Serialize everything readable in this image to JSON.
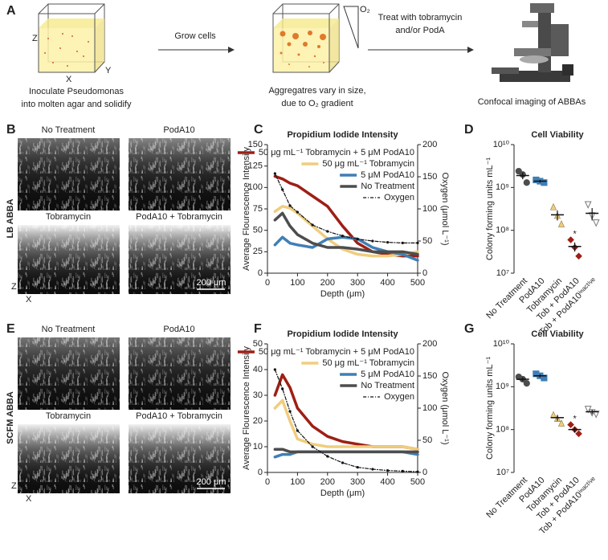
{
  "panel_labels": [
    "A",
    "B",
    "C",
    "D",
    "E",
    "F",
    "G"
  ],
  "schematic": {
    "axis_z": "Z",
    "axis_x": "X",
    "axis_y": "Y",
    "step1": [
      "Inoculate Pseudomonas",
      "into molten agar and solidify"
    ],
    "arrow1": "Grow cells",
    "oxygen": "O₂",
    "step2": [
      "Aggregatres vary in size,",
      "due to O₂ gradient"
    ],
    "arrow2": [
      "Treat with tobramycin",
      "and/or PodA"
    ],
    "step3": "Confocal imaging of ABBAs"
  },
  "micrographs": [
    {
      "medium": "LB ABBA",
      "tiles": [
        "No Treatment",
        "PodA10",
        "Tobramycin",
        "PodA10 + Tobramycin"
      ],
      "scale_bar": "200 μm",
      "axis_z": "Z",
      "axis_x": "X"
    },
    {
      "medium": "SCFM ABBA",
      "tiles": [
        "No Treatment",
        "PodA10",
        "Tobramycin",
        "PodA10 + Tobramycin"
      ],
      "scale_bar": "200 μm",
      "axis_z": "Z",
      "axis_x": "X"
    }
  ],
  "chart_data": [
    {
      "type": "line",
      "title": "Propidium Iodide Intensity",
      "xlabel": "Depth (μm)",
      "ylabel": "Average Flourescence Intensity",
      "y2label": "Oxygen (μmol L⁻¹)",
      "x": [
        25,
        50,
        75,
        100,
        150,
        200,
        250,
        300,
        350,
        400,
        450,
        500
      ],
      "xlim": [
        0,
        500
      ],
      "xticks": [
        0,
        100,
        200,
        300,
        400,
        500
      ],
      "ylim": [
        0,
        150
      ],
      "yticks": [
        0,
        25,
        50,
        75,
        100,
        125,
        150
      ],
      "y2lim": [
        0,
        200
      ],
      "y2ticks": [
        0,
        50,
        100,
        150,
        200
      ],
      "legend": "upper right",
      "series": [
        {
          "name": "50 μg mL⁻¹ Tobramycin + 5 μM PodA10",
          "color": "#9e1f15",
          "values": [
            113,
            110,
            105,
            102,
            90,
            78,
            55,
            35,
            25,
            22,
            20,
            20
          ]
        },
        {
          "name": "50 μg mL⁻¹ Tobramycin",
          "color": "#f0cd7e",
          "values": [
            72,
            78,
            76,
            70,
            55,
            40,
            28,
            22,
            20,
            20,
            22,
            25
          ]
        },
        {
          "name": "5 μM PodA10",
          "color": "#3f7fb5",
          "values": [
            33,
            42,
            35,
            33,
            30,
            40,
            42,
            40,
            30,
            25,
            22,
            15
          ]
        },
        {
          "name": "No Treatment",
          "color": "#4d4d4d",
          "values": [
            62,
            70,
            55,
            45,
            35,
            30,
            30,
            28,
            25,
            25,
            25,
            22
          ]
        },
        {
          "name": "Oxygen",
          "color": "#111111",
          "style": "dotted",
          "axis": "y2",
          "values": [
            155,
            130,
            105,
            95,
            75,
            65,
            58,
            53,
            50,
            48,
            47,
            47
          ]
        }
      ]
    },
    {
      "type": "strip",
      "title": "Cell Viability",
      "ylabel": "Colony forming units mL⁻¹",
      "log_scale": true,
      "categories": [
        "No Treatment",
        "PodA10",
        "Tobramycin",
        "Tob + PodA10",
        "Tob + PodA10ⁱⁿᵃᶜᵗⁱᵛᵉ"
      ],
      "ylim": [
        10000000,
        10000000000
      ],
      "yticks": [
        {
          "value": 10000000,
          "label": "10⁷"
        },
        {
          "value": 100000000,
          "label": "10⁸"
        },
        {
          "value": 1000000000,
          "label": "10⁹"
        },
        {
          "value": 10000000000,
          "label": "10¹⁰"
        }
      ],
      "points": [
        [
          2400000000,
          2000000000,
          1300000000
        ],
        [
          1500000000,
          1400000000,
          1300000000
        ],
        [
          350000000,
          220000000,
          140000000
        ],
        [
          60000000,
          40000000,
          25000000
        ],
        [
          400000000,
          220000000,
          150000000
        ]
      ],
      "values": [
        1900000000,
        1400000000,
        230000000,
        42000000,
        250000000
      ],
      "errors": [
        350000000,
        100000000,
        60000000,
        10000000,
        80000000
      ],
      "colors": [
        "#4d4d4d",
        "#3f7fb5",
        "#f0cd7e",
        "#9e1f15",
        "#777777"
      ],
      "markers": [
        "circle",
        "square",
        "triangle",
        "diamond",
        "open-triangle-down"
      ],
      "significance": [
        null,
        null,
        null,
        "*",
        null
      ]
    },
    {
      "type": "line",
      "title": "Propidium Iodide Intensity",
      "xlabel": "Depth (μm)",
      "ylabel": "Average Flourescence Intensity",
      "y2label": "Oxygen (μmol L⁻¹)",
      "x": [
        25,
        50,
        75,
        100,
        150,
        200,
        250,
        300,
        350,
        400,
        450,
        500
      ],
      "xlim": [
        0,
        500
      ],
      "xticks": [
        0,
        100,
        200,
        300,
        400,
        500
      ],
      "ylim": [
        0,
        50
      ],
      "yticks": [
        0,
        10,
        20,
        30,
        40,
        50
      ],
      "y2lim": [
        0,
        200
      ],
      "y2ticks": [
        0,
        50,
        100,
        150,
        200
      ],
      "legend": "upper right",
      "series": [
        {
          "name": "50 μg mL⁻¹ Tobramycin + 5 μM PodA10",
          "color": "#9e1f15",
          "values": [
            30,
            38,
            33,
            25,
            18,
            14,
            12,
            11,
            10,
            10,
            10,
            9
          ]
        },
        {
          "name": "50 μg mL⁻¹ Tobramycin",
          "color": "#f0cd7e",
          "values": [
            25,
            28,
            20,
            13,
            11,
            10,
            10,
            10,
            10,
            10,
            10,
            9
          ]
        },
        {
          "name": "5 μM PodA10",
          "color": "#3f7fb5",
          "values": [
            6,
            7,
            7,
            8,
            8,
            8,
            8,
            8,
            8,
            8,
            8,
            7
          ]
        },
        {
          "name": "No Treatment",
          "color": "#4d4d4d",
          "values": [
            9,
            9,
            8,
            8,
            8,
            8,
            8,
            8,
            8,
            8,
            8,
            8
          ]
        },
        {
          "name": "Oxygen",
          "color": "#111111",
          "style": "dotted",
          "axis": "y2",
          "values": [
            160,
            130,
            95,
            65,
            40,
            25,
            15,
            8,
            5,
            3,
            2,
            1
          ]
        }
      ]
    },
    {
      "type": "strip",
      "title": "Cell Viability",
      "ylabel": "Colony forming units mL⁻¹",
      "log_scale": true,
      "categories": [
        "No Treatment",
        "PodA10",
        "Tobramycin",
        "Tob + PodA10",
        "Tob + PodA10ⁱⁿᵃᶜᵗⁱᵛᵉ"
      ],
      "ylim": [
        10000000,
        10000000000
      ],
      "yticks": [
        {
          "value": 10000000,
          "label": "10⁷"
        },
        {
          "value": 100000000,
          "label": "10⁸"
        },
        {
          "value": 1000000000,
          "label": "10⁹"
        },
        {
          "value": 10000000000,
          "label": "10¹⁰"
        }
      ],
      "points": [
        [
          1700000000,
          1500000000,
          1200000000
        ],
        [
          2000000000,
          1800000000,
          1600000000
        ],
        [
          220000000,
          180000000,
          140000000
        ],
        [
          130000000,
          100000000,
          80000000
        ],
        [
          300000000,
          250000000,
          230000000
        ]
      ],
      "values": [
        1500000000,
        1800000000,
        190000000,
        100000000,
        260000000
      ],
      "errors": [
        150000000,
        150000000,
        30000000,
        15000000,
        30000000
      ],
      "colors": [
        "#4d4d4d",
        "#3f7fb5",
        "#f0cd7e",
        "#9e1f15",
        "#777777"
      ],
      "markers": [
        "circle",
        "square",
        "triangle",
        "diamond",
        "open-triangle-down"
      ],
      "significance": [
        null,
        null,
        null,
        "*",
        null
      ]
    }
  ]
}
